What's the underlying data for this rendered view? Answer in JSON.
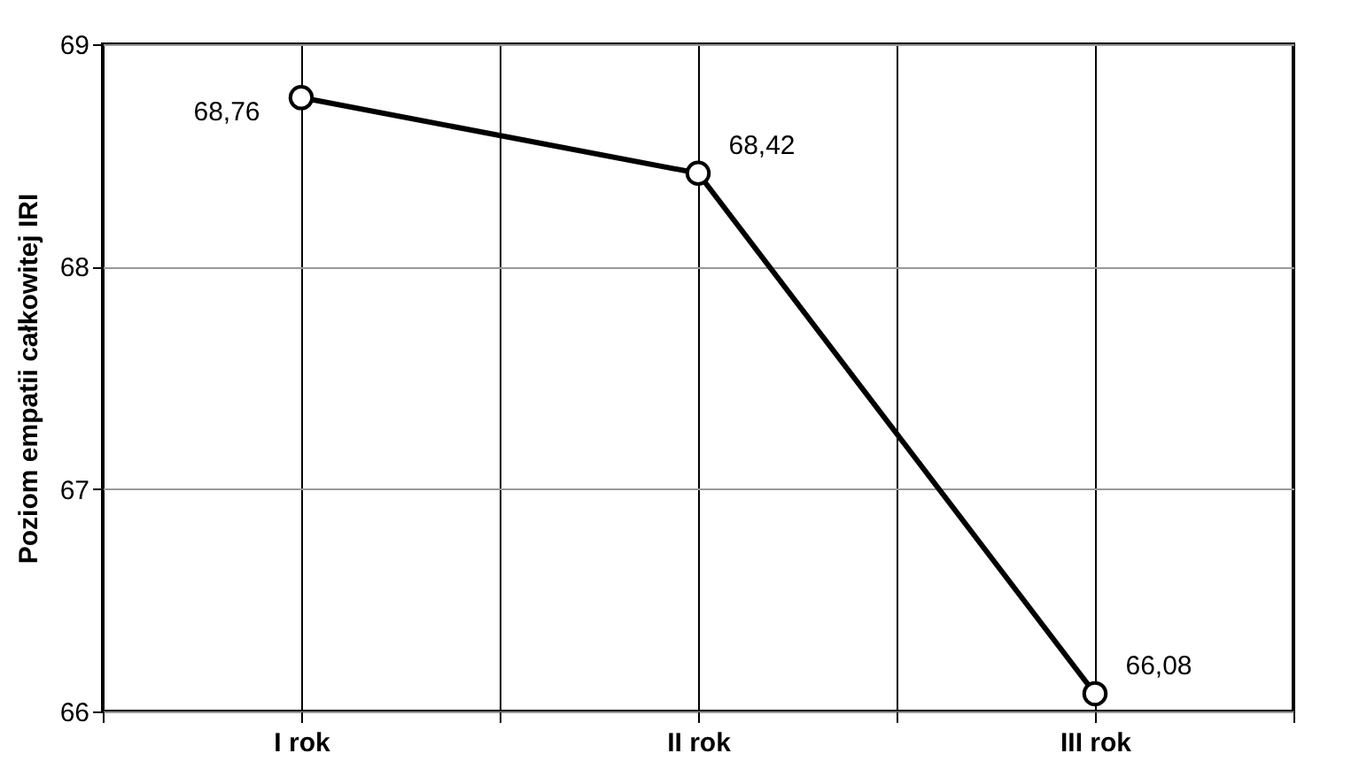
{
  "chart_data": {
    "type": "line",
    "ylabel": "Poziom empatii całkowitej IRI",
    "categories": [
      "I rok",
      "II rok",
      "III rok"
    ],
    "series": [
      {
        "color": "#000000",
        "values": [
          68.76,
          68.42,
          66.08
        ],
        "value_labels": [
          "68,76",
          "68,42",
          "66,08"
        ]
      }
    ],
    "ylim": [
      66,
      69
    ],
    "yticks": [
      66,
      67,
      68,
      69
    ],
    "grid": true,
    "marker": "circle",
    "line_style": "solid"
  }
}
